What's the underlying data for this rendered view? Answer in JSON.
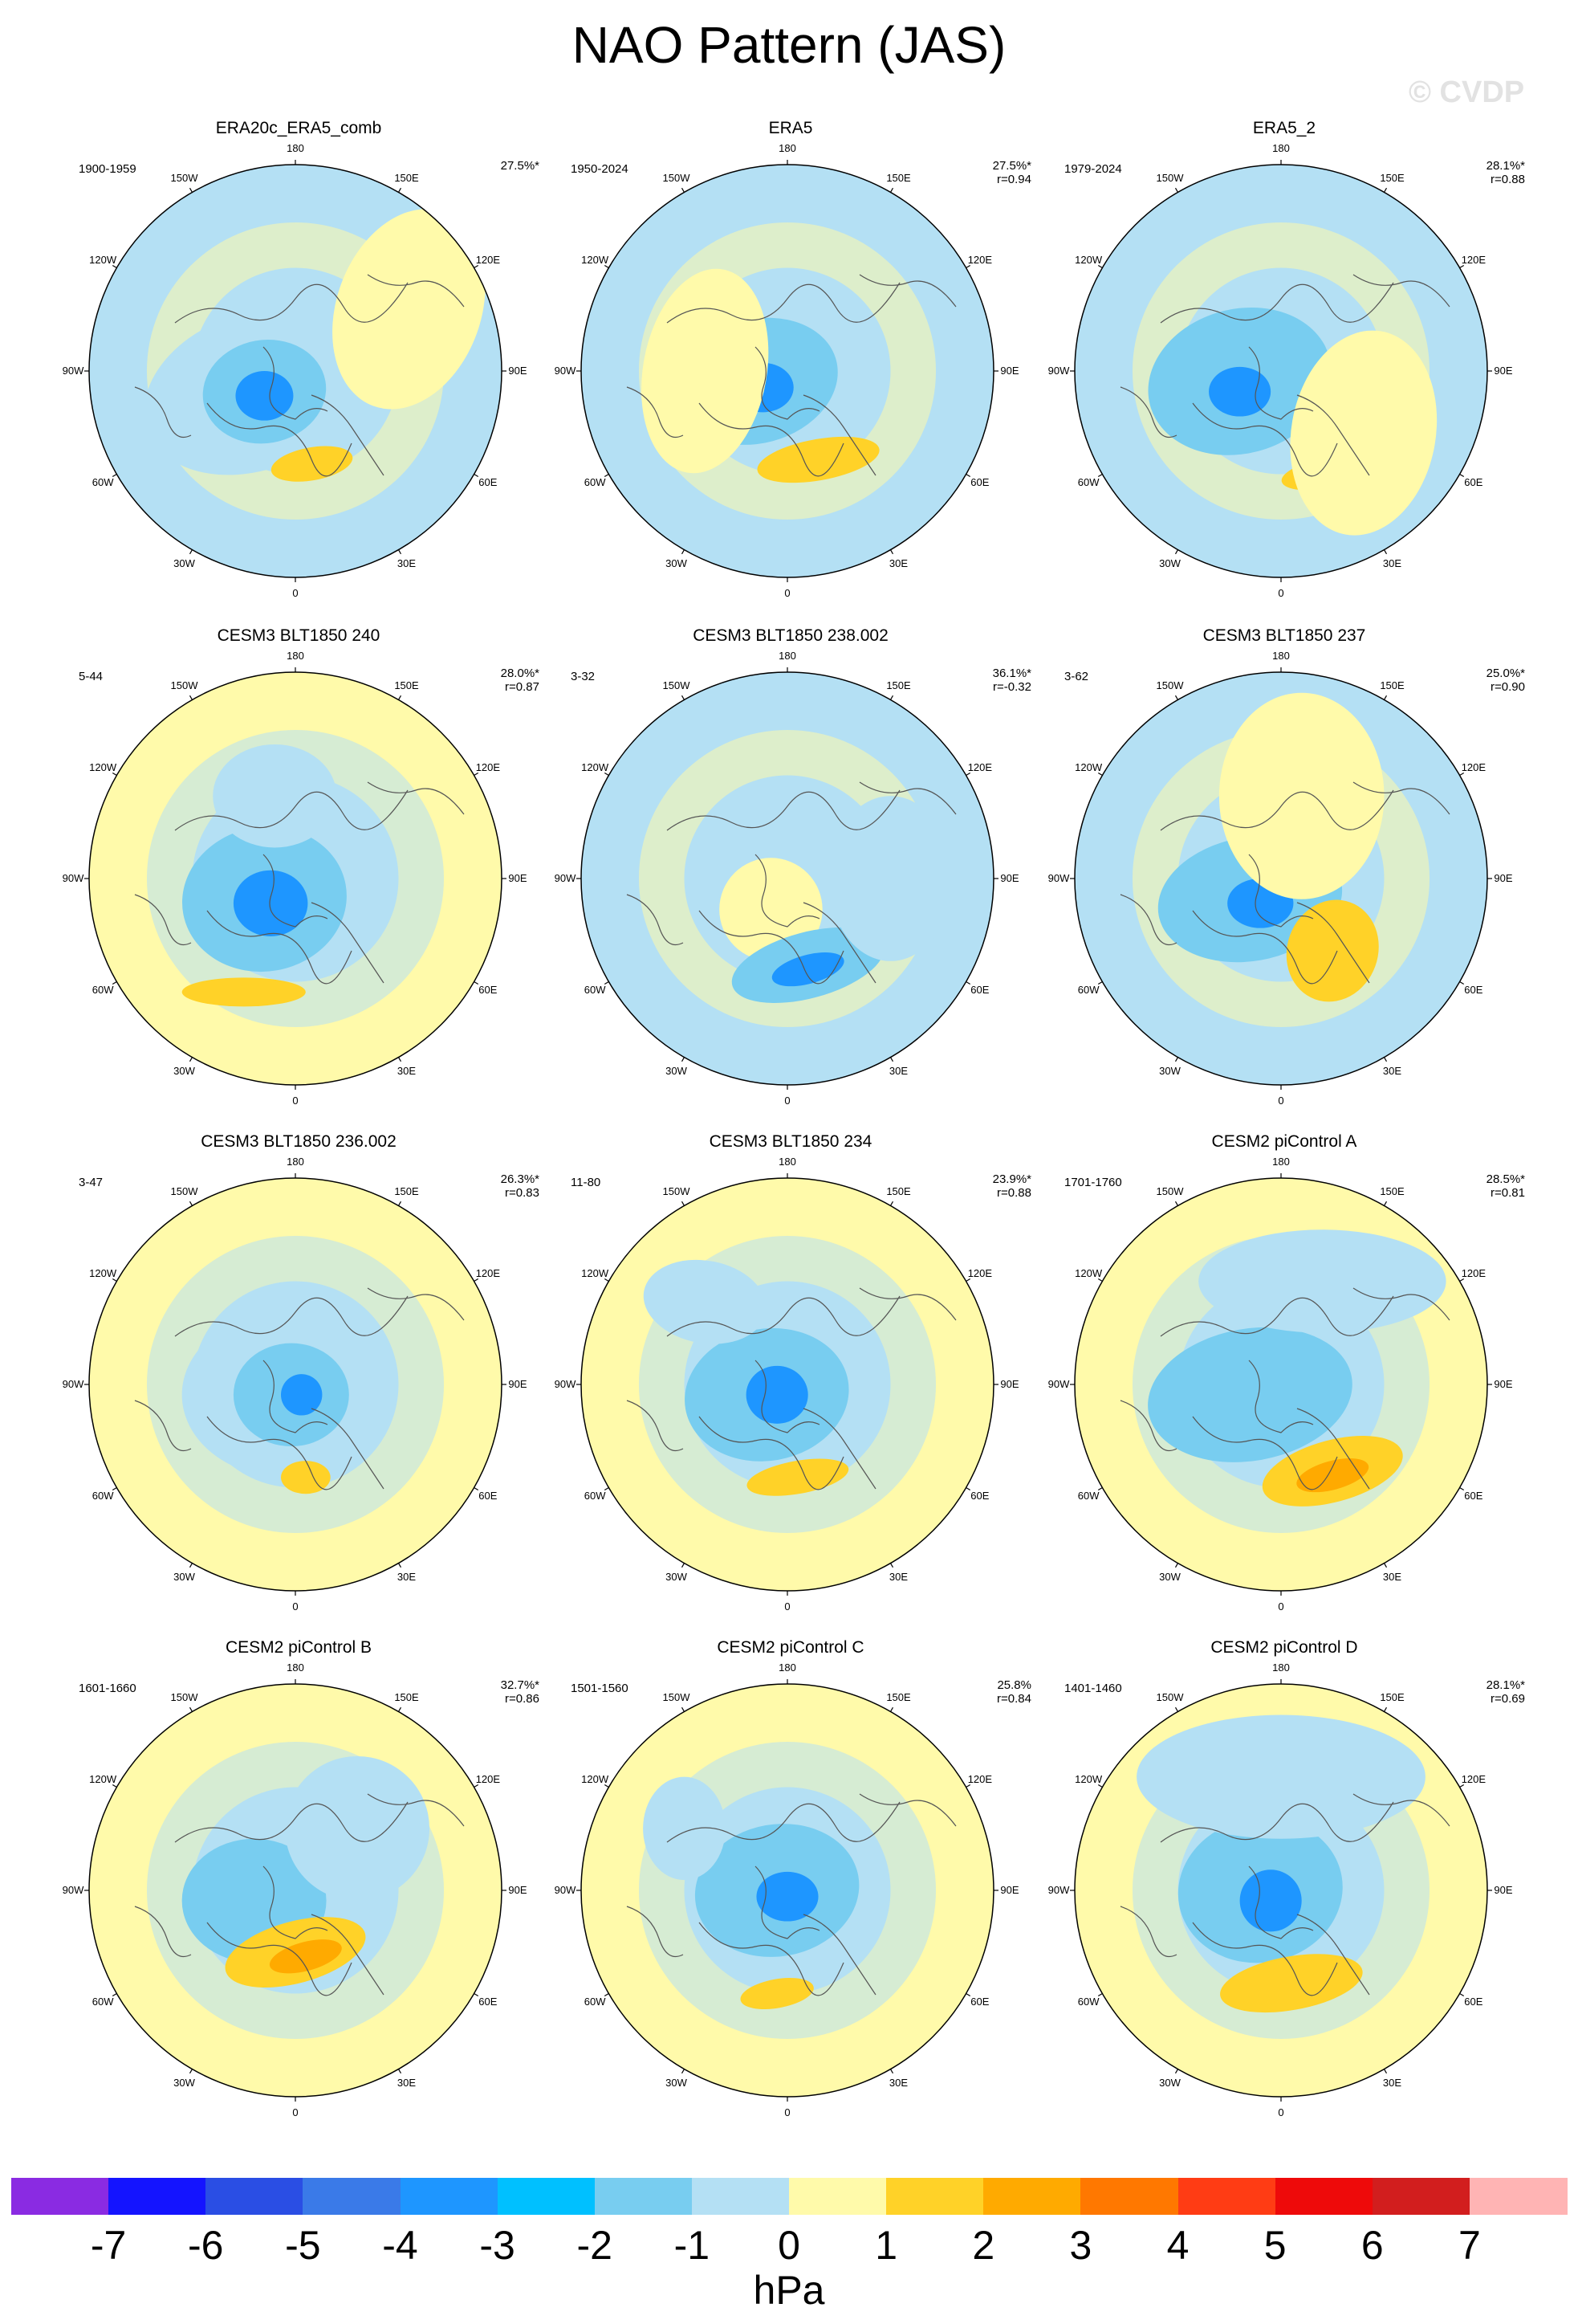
{
  "title": "NAO Pattern (JAS)",
  "watermark": "© CVDP",
  "longitude_labels": [
    "180",
    "150E",
    "120E",
    "90E",
    "60E",
    "30E",
    "0",
    "30W",
    "60W",
    "90W",
    "120W",
    "150W"
  ],
  "panels": [
    {
      "title": "ERA20c_ERA5_comb",
      "years": "1900-1959",
      "pct": "27.5%*",
      "r": ""
    },
    {
      "title": "ERA5",
      "years": "1950-2024",
      "pct": "27.5%*",
      "r": "r=0.94"
    },
    {
      "title": "ERA5_2",
      "years": "1979-2024",
      "pct": "28.1%*",
      "r": "r=0.88"
    },
    {
      "title": "CESM3 BLT1850 240",
      "years": "5-44",
      "pct": "28.0%*",
      "r": "r=0.87"
    },
    {
      "title": "CESM3 BLT1850 238.002",
      "years": "3-32",
      "pct": "36.1%*",
      "r": "r=-0.32"
    },
    {
      "title": "CESM3 BLT1850 237",
      "years": "3-62",
      "pct": "25.0%*",
      "r": "r=0.90"
    },
    {
      "title": "CESM3 BLT1850 236.002",
      "years": "3-47",
      "pct": "26.3%*",
      "r": "r=0.83"
    },
    {
      "title": "CESM3 BLT1850 234",
      "years": "11-80",
      "pct": "23.9%*",
      "r": "r=0.88"
    },
    {
      "title": "CESM2 piControl A",
      "years": "1701-1760",
      "pct": "28.5%*",
      "r": "r=0.81"
    },
    {
      "title": "CESM2 piControl B",
      "years": "1601-1660",
      "pct": "32.7%*",
      "r": "r=0.86"
    },
    {
      "title": "CESM2 piControl C",
      "years": "1501-1560",
      "pct": "25.8%",
      "r": "r=0.84"
    },
    {
      "title": "CESM2 piControl D",
      "years": "1401-1460",
      "pct": "28.1%*",
      "r": "r=0.69"
    }
  ],
  "colorbar": {
    "colors": [
      "#8a2be2",
      "#1414ff",
      "#2a4ee4",
      "#3a7ae8",
      "#1e96ff",
      "#00c0ff",
      "#78cdf0",
      "#b4e0f4",
      "#fffaaa",
      "#ffd228",
      "#ffaa00",
      "#ff7800",
      "#ff3c14",
      "#ee0a0a",
      "#d21e1e",
      "#ffb4b4"
    ],
    "labels": [
      "-7",
      "-6",
      "-5",
      "-4",
      "-3",
      "-2",
      "-1",
      "0",
      "1",
      "2",
      "3",
      "4",
      "5",
      "6",
      "7"
    ],
    "units": "hPa"
  }
}
